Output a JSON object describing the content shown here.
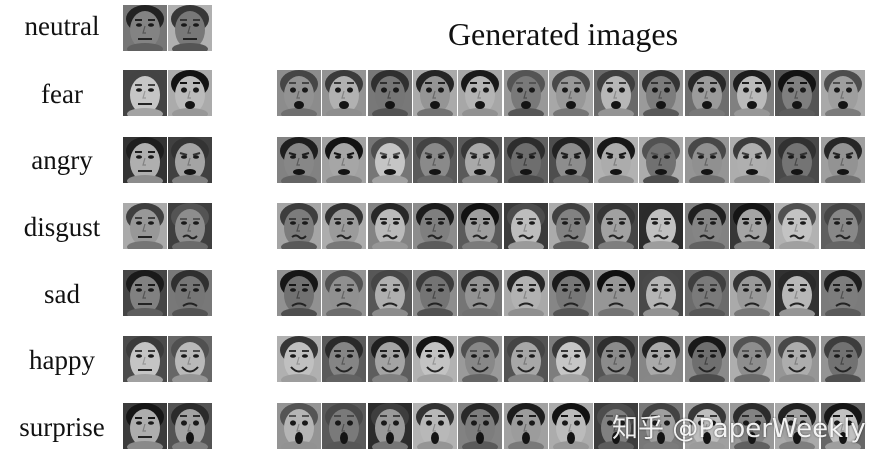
{
  "figure": {
    "title": "Generated images",
    "rows": [
      {
        "label": "neutral"
      },
      {
        "label": "fear"
      },
      {
        "label": "angry"
      },
      {
        "label": "disgust"
      },
      {
        "label": "sad"
      },
      {
        "label": "happy"
      },
      {
        "label": "surprise"
      }
    ],
    "reference_faces_per_row": 2,
    "generated_faces_per_row": 13,
    "watermark": "知乎 @PaperWeekly"
  },
  "colors": {
    "background": "#ffffff",
    "text": "#111111"
  }
}
